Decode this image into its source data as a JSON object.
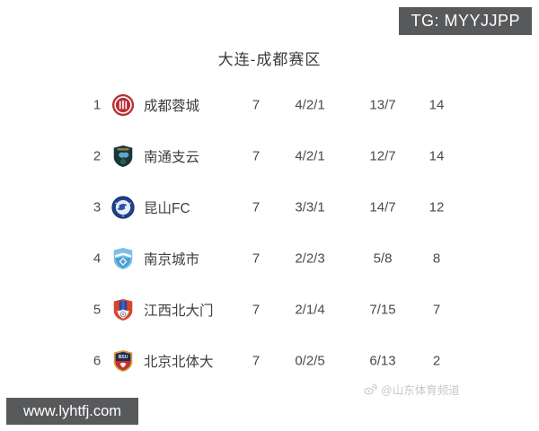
{
  "badge": {
    "text": "TG: MYYJJPP"
  },
  "watermark": {
    "text": "@山东体育频道",
    "icon": "weibo-icon"
  },
  "ribbon": {
    "text": "www.lyhtfj.com"
  },
  "colors": {
    "badge_bg": "#58595b",
    "ribbon_bg": "#58595b",
    "title_text": "#3b3b3b",
    "table_text": "#4a4a4a",
    "watermark_text": "#c9c9c9",
    "background": "#ffffff"
  },
  "chart_data": {
    "type": "table",
    "title": "大连-成都赛区",
    "rows": [
      {
        "rank": "1",
        "team": "成都蓉城",
        "played": "7",
        "wdl": "4/2/1",
        "goals": "13/7",
        "points": "14",
        "logo": "chengdu-rongcheng"
      },
      {
        "rank": "2",
        "team": "南通支云",
        "played": "7",
        "wdl": "4/2/1",
        "goals": "12/7",
        "points": "14",
        "logo": "nantong-zhiyun"
      },
      {
        "rank": "3",
        "team": "昆山FC",
        "played": "7",
        "wdl": "3/3/1",
        "goals": "14/7",
        "points": "12",
        "logo": "kunshan-fc"
      },
      {
        "rank": "4",
        "team": "南京城市",
        "played": "7",
        "wdl": "2/2/3",
        "goals": "5/8",
        "points": "8",
        "logo": "nanjing-city"
      },
      {
        "rank": "5",
        "team": "江西北大门",
        "played": "7",
        "wdl": "2/1/4",
        "goals": "7/15",
        "points": "7",
        "logo": "jiangxi-beidamen"
      },
      {
        "rank": "6",
        "team": "北京北体大",
        "played": "7",
        "wdl": "0/2/5",
        "goals": "6/13",
        "points": "2",
        "logo": "beijing-bsu"
      }
    ]
  }
}
